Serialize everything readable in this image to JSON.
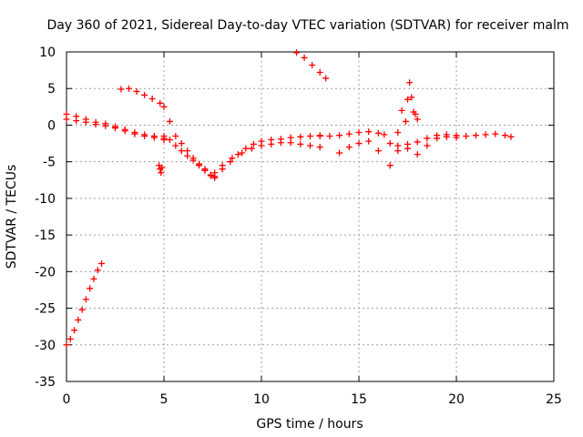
{
  "chart_data": {
    "type": "scatter",
    "title": "Day 360 of 2021, Sidereal Day-to-day VTEC variation (SDTVAR) for receiver malm",
    "xlabel": "GPS time / hours",
    "ylabel": "SDTVAR / TECUs",
    "xlim": [
      0,
      25
    ],
    "ylim": [
      -35,
      10
    ],
    "xticks": [
      0,
      5,
      10,
      15,
      20,
      25
    ],
    "yticks": [
      -35,
      -30,
      -25,
      -20,
      -15,
      -10,
      -5,
      0,
      5,
      10
    ],
    "xtick_labels": [
      "0",
      "5",
      "10",
      "15",
      "20",
      "25"
    ],
    "ytick_labels": [
      "-35",
      "-30",
      "-25",
      "-20",
      "-15",
      "-10",
      "-5",
      "0",
      "5",
      "10"
    ],
    "grid": true,
    "marker": "+",
    "series": [
      {
        "name": "SDTVAR",
        "color": "#ff0000",
        "segments": [
          {
            "name": "early-rise",
            "x": [
              0.0,
              0.2,
              0.4,
              0.6,
              0.8,
              1.0,
              1.2,
              1.4,
              1.6,
              1.8
            ],
            "y": [
              -30.0,
              -29.2,
              -28.0,
              -26.6,
              -25.2,
              -23.8,
              -22.3,
              -21.0,
              -19.8,
              -18.9
            ]
          },
          {
            "name": "main-a",
            "x": [
              0.0,
              0.5,
              1.0,
              1.5,
              2.0,
              2.5,
              3.0,
              3.5,
              4.0,
              4.5,
              5.0
            ],
            "y": [
              1.5,
              1.2,
              0.8,
              0.4,
              0.2,
              -0.2,
              -0.6,
              -1.0,
              -1.3,
              -1.5,
              -1.8
            ]
          },
          {
            "name": "main-b",
            "x": [
              0.0,
              0.5,
              1.0,
              1.5,
              2.0,
              2.5,
              3.0,
              3.5,
              4.0,
              4.5,
              5.0
            ],
            "y": [
              0.8,
              0.6,
              0.4,
              0.1,
              -0.1,
              -0.4,
              -0.8,
              -1.2,
              -1.5,
              -1.7,
              -2.0
            ]
          },
          {
            "name": "upper-arc",
            "x": [
              2.8,
              3.2,
              3.6,
              4.0,
              4.4,
              4.8
            ],
            "y": [
              4.9,
              5.0,
              4.6,
              4.1,
              3.6,
              3.0
            ]
          },
          {
            "name": "dip-spike",
            "x": [
              4.75,
              4.8,
              4.85,
              4.9
            ],
            "y": [
              -5.5,
              -6.0,
              -6.5,
              -5.8
            ]
          },
          {
            "name": "descent-a",
            "x": [
              5.0,
              5.3,
              5.6,
              5.9,
              6.2,
              6.5,
              6.8,
              7.1,
              7.4,
              7.6
            ],
            "y": [
              2.5,
              0.5,
              -1.5,
              -2.5,
              -3.5,
              -4.5,
              -5.3,
              -6.0,
              -6.8,
              -7.2
            ]
          },
          {
            "name": "descent-b",
            "x": [
              5.0,
              5.3,
              5.6,
              5.9,
              6.2,
              6.5,
              6.8,
              7.1,
              7.4
            ],
            "y": [
              -1.5,
              -2.0,
              -2.8,
              -3.5,
              -4.2,
              -4.8,
              -5.5,
              -6.2,
              -6.9
            ]
          },
          {
            "name": "recovery-a",
            "x": [
              7.6,
              8.0,
              8.4,
              8.8,
              9.2,
              9.6,
              10.0,
              10.5,
              11.0,
              11.5,
              12.0,
              12.5,
              13.0
            ],
            "y": [
              -7.0,
              -6.0,
              -5.0,
              -4.0,
              -3.2,
              -2.6,
              -2.2,
              -2.0,
              -1.9,
              -1.7,
              -1.6,
              -1.5,
              -1.4
            ]
          },
          {
            "name": "recovery-b",
            "x": [
              7.6,
              8.0,
              8.5,
              9.0,
              9.5,
              10.0,
              10.5,
              11.0,
              11.5,
              12.0,
              12.5,
              13.0
            ],
            "y": [
              -6.5,
              -5.5,
              -4.5,
              -3.8,
              -3.2,
              -2.8,
              -2.6,
              -2.4,
              -2.4,
              -2.6,
              -2.8,
              -3.0
            ]
          },
          {
            "name": "late-upper",
            "x": [
              11.8,
              12.2,
              12.6,
              13.0,
              13.3
            ],
            "y": [
              9.9,
              9.2,
              8.2,
              7.2,
              6.4
            ]
          },
          {
            "name": "afternoon-a",
            "x": [
              13.0,
              13.5,
              14.0,
              14.5,
              15.0,
              15.5,
              16.0,
              16.3
            ],
            "y": [
              -1.5,
              -1.5,
              -1.4,
              -1.2,
              -1.0,
              -0.9,
              -1.1,
              -1.3
            ]
          },
          {
            "name": "afternoon-b",
            "x": [
              14.0,
              14.5,
              15.0,
              15.5,
              16.0
            ],
            "y": [
              -3.8,
              -3.0,
              -2.5,
              -2.2,
              -3.5
            ]
          },
          {
            "name": "evening-a",
            "x": [
              16.6,
              17.0,
              17.5,
              18.0,
              18.5,
              19.0,
              19.5,
              20.0,
              20.5,
              21.0,
              21.5,
              22.0,
              22.5,
              22.8
            ],
            "y": [
              -2.5,
              -2.8,
              -2.6,
              -2.3,
              -1.8,
              -1.4,
              -1.3,
              -1.4,
              -1.5,
              -1.4,
              -1.3,
              -1.2,
              -1.4,
              -1.6
            ]
          },
          {
            "name": "evening-b",
            "x": [
              16.6,
              17.0,
              17.5,
              18.0,
              18.5,
              19.0,
              19.5,
              20.0
            ],
            "y": [
              -5.5,
              -3.5,
              -3.2,
              -4.0,
              -2.8,
              -1.8,
              -1.6,
              -1.7
            ]
          },
          {
            "name": "late-spike",
            "x": [
              17.0,
              17.2,
              17.4,
              17.5,
              17.6,
              17.7,
              17.8,
              17.9,
              18.0
            ],
            "y": [
              -1.0,
              2.0,
              0.5,
              3.5,
              5.8,
              3.8,
              1.8,
              1.5,
              0.8
            ]
          }
        ]
      }
    ]
  }
}
